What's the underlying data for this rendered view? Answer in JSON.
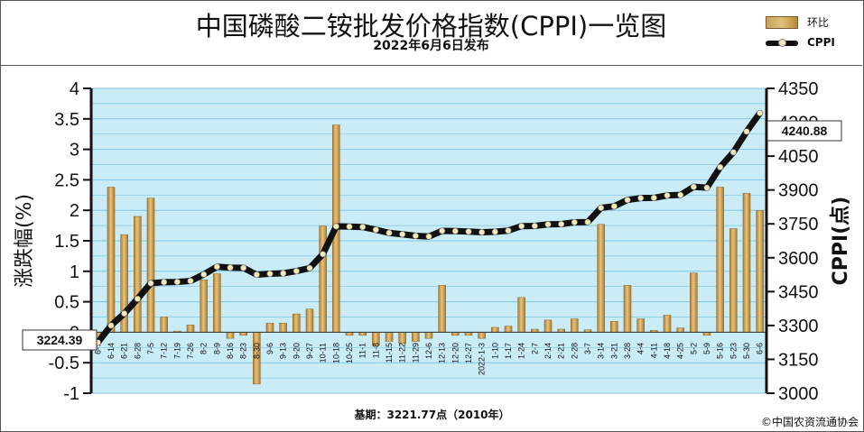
{
  "header": {
    "title": "中国磷酸二铵批发价格指数(CPPI)一览图",
    "subtitle": "2022年6月6日发布"
  },
  "legend": {
    "bar_label": "环比",
    "line_label": "CPPI"
  },
  "footer": {
    "base_period": "基期：3221.77点（2010年）",
    "copyright": "©中国农资流通协会"
  },
  "colors": {
    "plot_background": "#c9ecf7",
    "grid": "#7fc6e6",
    "bar": "#d4a452",
    "bar_dark": "#a87a33",
    "line": "#111111",
    "marker": "#f4e9b8"
  },
  "chart_data": {
    "type": "bar+line",
    "ylabel_left": "涨跌幅(%)",
    "ylabel_right": "CPPI(点)",
    "left_axis": {
      "ylim": [
        -1,
        4
      ],
      "ticks": [
        "-1",
        "-0.5",
        "0",
        "0.5",
        "1",
        "1.5",
        "2",
        "2.5",
        "3",
        "3.5",
        "4"
      ]
    },
    "right_axis": {
      "ylim": [
        3000,
        4350
      ],
      "ticks": [
        "3000",
        "3150",
        "3300",
        "3450",
        "3600",
        "3750",
        "3900",
        "4050",
        "4200",
        "4350"
      ]
    },
    "grid": true,
    "categories": [
      "6-7",
      "6-14",
      "6-21",
      "6-28",
      "7-5",
      "7-12",
      "7-19",
      "7-26",
      "8-2",
      "8-9",
      "8-16",
      "8-23",
      "8-30",
      "9-6",
      "9-13",
      "9-20",
      "9-27",
      "10-11",
      "10-18",
      "10-25",
      "11-1",
      "11-8",
      "11-15",
      "11-22",
      "11-29",
      "12-6",
      "12-13",
      "12-20",
      "12-27",
      "2022-1-3",
      "1-10",
      "1-17",
      "1-24",
      "2-7",
      "2-14",
      "2-21",
      "2-28",
      "3-7",
      "3-14",
      "3-21",
      "3-28",
      "4-4",
      "4-11",
      "4-18",
      "4-25",
      "5-2",
      "5-9",
      "5-16",
      "5-23",
      "5-30",
      "6-6"
    ],
    "series": [
      {
        "name": "环比",
        "kind": "bar",
        "axis": "left",
        "values": [
          -0.1,
          2.38,
          1.6,
          1.9,
          2.2,
          0.25,
          0.02,
          0.12,
          0.86,
          0.96,
          -0.1,
          -0.05,
          -0.85,
          0.15,
          0.15,
          0.3,
          0.38,
          1.74,
          3.4,
          -0.05,
          -0.05,
          -0.22,
          -0.15,
          -0.18,
          -0.15,
          -0.1,
          0.77,
          -0.05,
          -0.05,
          -0.1,
          0.08,
          0.1,
          0.57,
          0.05,
          0.2,
          0.05,
          0.22,
          0.04,
          1.77,
          0.18,
          0.77,
          0.22,
          0.03,
          0.28,
          0.07,
          0.97,
          -0.05,
          2.38,
          1.7,
          2.28,
          2.0
        ]
      },
      {
        "name": "CPPI",
        "kind": "line",
        "axis": "right",
        "values": [
          3224.39,
          3300,
          3353,
          3418,
          3487,
          3492,
          3493,
          3497,
          3526,
          3560,
          3556,
          3555,
          3525,
          3529,
          3531,
          3541,
          3554,
          3616,
          3739,
          3738,
          3736,
          3724,
          3710,
          3704,
          3697,
          3694,
          3719,
          3718,
          3716,
          3713,
          3715,
          3720,
          3740,
          3741,
          3748,
          3749,
          3757,
          3758,
          3821,
          3828,
          3856,
          3864,
          3865,
          3876,
          3878,
          3914,
          3910,
          4001,
          4067,
          4159,
          4240.88
        ]
      }
    ],
    "annotations": {
      "start_label": "3224.39",
      "end_label": "4240.88"
    }
  }
}
